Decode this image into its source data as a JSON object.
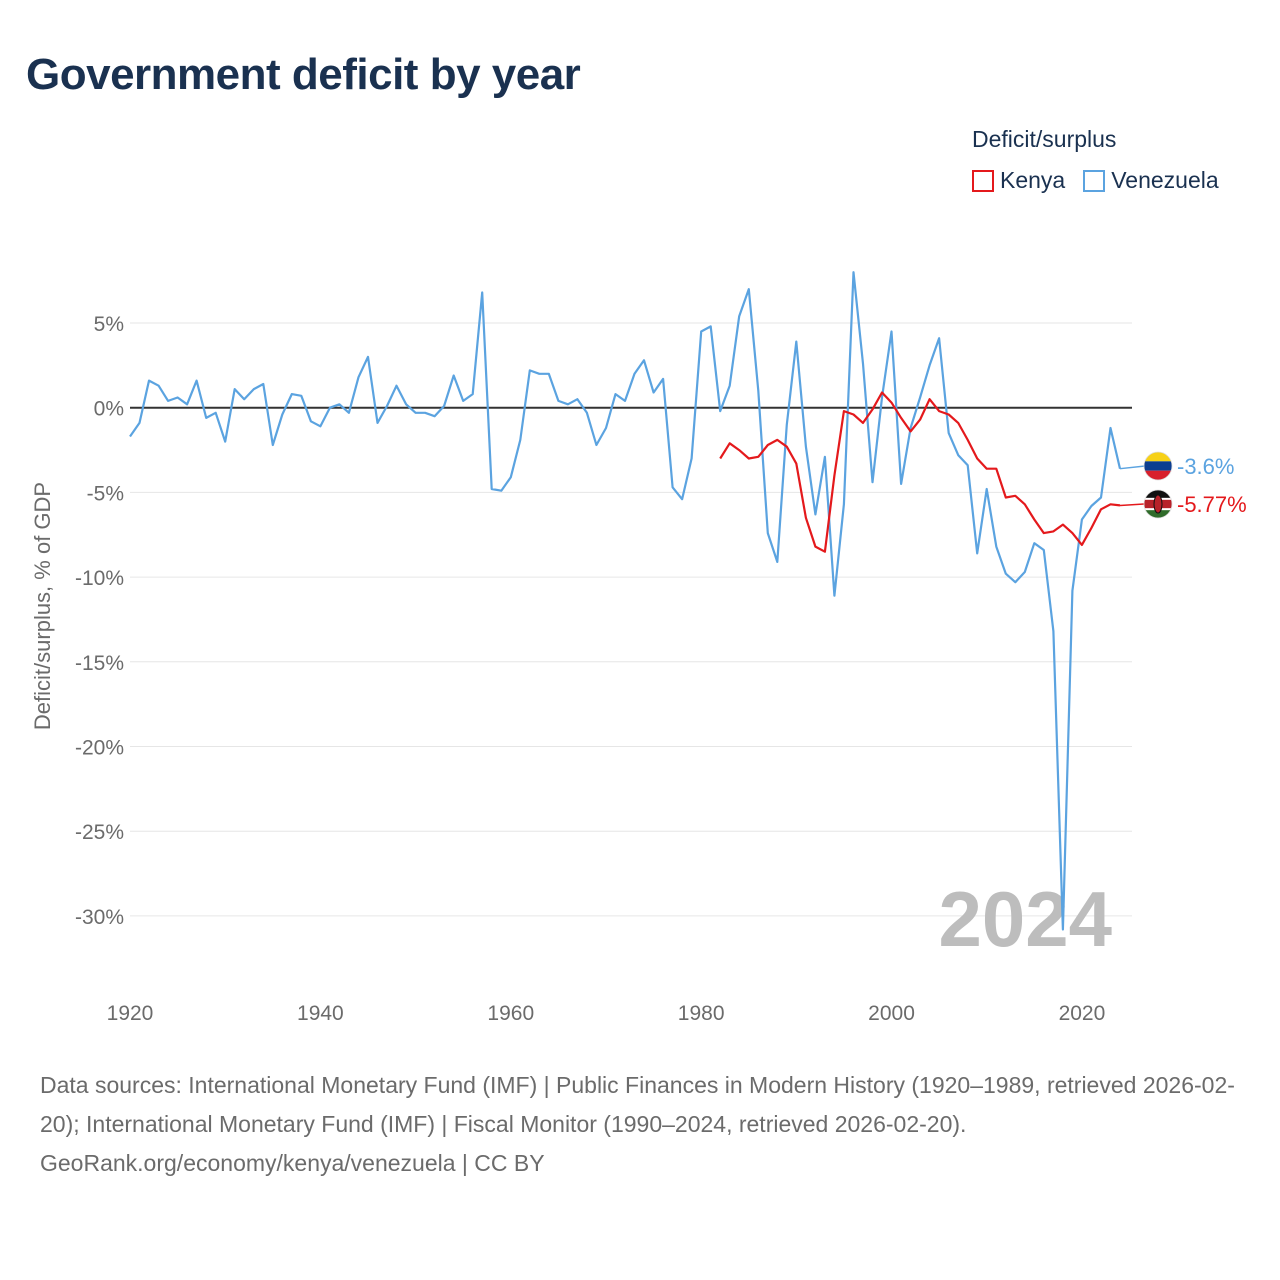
{
  "title": "Government deficit by year",
  "legend": {
    "title": "Deficit/surplus",
    "items": [
      {
        "name": "Kenya",
        "color": "#e4191c"
      },
      {
        "name": "Venezuela",
        "color": "#5ba3e0"
      }
    ]
  },
  "year_watermark": "2024",
  "footer": {
    "sources": "Data sources: International Monetary Fund (IMF) | Public Finances in Modern History (1920–1989, retrieved 2026-02-20); International Monetary Fund (IMF) | Fiscal Monitor (1990–2024, retrieved 2026-02-20).",
    "credit": "GeoRank.org/economy/kenya/venezuela | CC BY"
  },
  "chart_data": {
    "type": "line",
    "title": "Government deficit by year",
    "xlabel": "",
    "ylabel": "Deficit/surplus, % of GDP",
    "xlim": [
      1920,
      2024
    ],
    "ylim": [
      -33,
      8
    ],
    "xticks": [
      1920,
      1940,
      1960,
      1980,
      2000,
      2020
    ],
    "yticks": [
      5,
      0,
      -5,
      -10,
      -15,
      -20,
      -25,
      -30
    ],
    "ytick_labels": [
      "5%",
      "0%",
      "-5%",
      "-10%",
      "-15%",
      "-20%",
      "-25%",
      "-30%"
    ],
    "grid": true,
    "series": [
      {
        "name": "Venezuela",
        "color": "#5ba3e0",
        "end_label": "-3.6%",
        "x": [
          1920,
          1921,
          1922,
          1923,
          1924,
          1925,
          1926,
          1927,
          1928,
          1929,
          1930,
          1931,
          1932,
          1933,
          1934,
          1935,
          1936,
          1937,
          1938,
          1939,
          1940,
          1941,
          1942,
          1943,
          1944,
          1945,
          1946,
          1947,
          1948,
          1949,
          1950,
          1951,
          1952,
          1953,
          1954,
          1955,
          1956,
          1957,
          1958,
          1959,
          1960,
          1961,
          1962,
          1963,
          1964,
          1965,
          1966,
          1967,
          1968,
          1969,
          1970,
          1971,
          1972,
          1973,
          1974,
          1975,
          1976,
          1977,
          1978,
          1979,
          1980,
          1981,
          1982,
          1983,
          1984,
          1985,
          1986,
          1987,
          1988,
          1989,
          1990,
          1991,
          1992,
          1993,
          1994,
          1995,
          1996,
          1997,
          1998,
          1999,
          2000,
          2001,
          2002,
          2003,
          2004,
          2005,
          2006,
          2007,
          2008,
          2009,
          2010,
          2011,
          2012,
          2013,
          2014,
          2015,
          2016,
          2017,
          2018,
          2019,
          2020,
          2021,
          2022,
          2023,
          2024
        ],
        "values": [
          -1.7,
          -0.9,
          1.6,
          1.3,
          0.4,
          0.6,
          0.2,
          1.6,
          -0.6,
          -0.3,
          -2.0,
          1.1,
          0.5,
          1.1,
          1.4,
          -2.2,
          -0.4,
          0.8,
          0.7,
          -0.8,
          -1.1,
          0.0,
          0.2,
          -0.3,
          1.8,
          3.0,
          -0.9,
          0.1,
          1.3,
          0.2,
          -0.3,
          -0.3,
          -0.5,
          0.1,
          1.9,
          0.4,
          0.8,
          6.8,
          -4.8,
          -4.9,
          -4.1,
          -1.9,
          2.2,
          2.0,
          2.0,
          0.4,
          0.2,
          0.5,
          -0.3,
          -2.2,
          -1.2,
          0.8,
          0.4,
          2.0,
          2.8,
          0.9,
          1.7,
          -4.7,
          -5.4,
          -3.0,
          4.5,
          4.8,
          -0.2,
          1.3,
          5.4,
          7.0,
          1.0,
          -7.4,
          -9.1,
          -1.0,
          3.9,
          -2.3,
          -6.3,
          -2.9,
          -11.1,
          -5.7,
          8.0,
          2.6,
          -4.4,
          0.6,
          4.5,
          -4.5,
          -1.2,
          0.6,
          2.5,
          4.1,
          -1.5,
          -2.8,
          -3.4,
          -8.6,
          -4.8,
          -8.2,
          -9.8,
          -10.3,
          -9.7,
          -8.0,
          -8.4,
          -13.2,
          -30.8,
          -10.8,
          -6.6,
          -5.8,
          -5.3,
          -1.2,
          -3.6
        ]
      },
      {
        "name": "Kenya",
        "color": "#e4191c",
        "end_label": "-5.77%",
        "x": [
          1982,
          1983,
          1984,
          1985,
          1986,
          1987,
          1988,
          1989,
          1990,
          1991,
          1992,
          1993,
          1994,
          1995,
          1996,
          1997,
          1998,
          1999,
          2000,
          2001,
          2002,
          2003,
          2004,
          2005,
          2006,
          2007,
          2008,
          2009,
          2010,
          2011,
          2012,
          2013,
          2014,
          2015,
          2016,
          2017,
          2018,
          2019,
          2020,
          2021,
          2022,
          2023,
          2024
        ],
        "values": [
          -3.0,
          -2.1,
          -2.5,
          -3.0,
          -2.9,
          -2.2,
          -1.9,
          -2.3,
          -3.3,
          -6.5,
          -8.2,
          -8.5,
          -4.0,
          -0.2,
          -0.4,
          -0.9,
          -0.1,
          0.9,
          0.3,
          -0.6,
          -1.4,
          -0.7,
          0.5,
          -0.2,
          -0.4,
          -0.9,
          -1.9,
          -3.0,
          -3.6,
          -3.6,
          -5.3,
          -5.2,
          -5.7,
          -6.6,
          -7.4,
          -7.3,
          -6.9,
          -7.4,
          -8.1,
          -7.1,
          -6.0,
          -5.7,
          -5.77
        ]
      }
    ]
  }
}
